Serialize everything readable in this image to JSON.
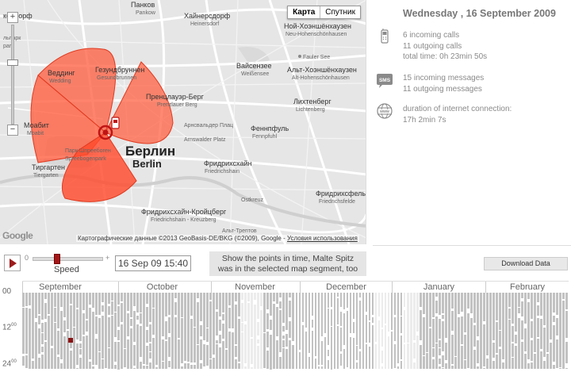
{
  "map": {
    "type_buttons": [
      "Карта",
      "Спутник"
    ],
    "zoom_in": "+",
    "zoom_out": "−",
    "attribution": "Картографические данные ©2013 GeoBasis-DE/BKG (©2009), Google - ",
    "terms": "Условия использования",
    "google": "Google",
    "labels": {
      "pankow": "Панков",
      "pankow_de": "Pankow",
      "heinersdorf": "Хайнерсдорф",
      "heinersdorf_de": "Heinersdorf",
      "neu_hohen": "Ной-Хоэншёнхаузен",
      "neu_hohen_de": "Neu-Hohenschönhausen",
      "kendorf": "кендорф",
      "reinickendorf_park": "льпарк",
      "reinickendorf_park_de": "park",
      "wedding": "Веддинг",
      "wedding_de": "Wedding",
      "gesundbrunnen": "Гезундбруннен",
      "gesundbrunnen_de": "Gesundbrunnen",
      "weissensee": "Вайсензее",
      "weissensee_de": "Weißensee",
      "alt_hohen": "Альт-Хоэншёнхаузен",
      "alt_hohen_de": "Alt-Hohenschönhausen",
      "prenzlauer": "Пренцлауэр-Берг",
      "prenzlauer_de": "Prenzlauer Berg",
      "lichtenberg": "Лихтенберг",
      "lichtenberg_de": "Lichtenberg",
      "moabit": "Моабит",
      "moabit_de": "Moabit",
      "arnswalder": "Арнсвальдер Плац",
      "arnswalder_de": "Arnswalder Platz",
      "fennpfuhl": "Феннпфуль",
      "fennpfuhl_de": "Fennpfuhl",
      "berlin": "Берлин",
      "berlin_de": "Berlin",
      "park": "Парк Шпреебоген",
      "park_de": "Spreebogenpark",
      "tiergarten": "Тиргартен",
      "tiergarten_de": "Tiergarten",
      "friedrichshain": "Фридрихсхайн",
      "friedrichshain_de": "Friedrichshain",
      "ostkreuz": "Ostkreuz",
      "friedrichsfelde": "Фридрихсфельде",
      "friedrichsfelde_de": "Friedrichsfelde",
      "kreuzberg": "Фридрихсхайн-Кройцберг",
      "kreuzberg_de": "Friedrichshain - Kreuzberg",
      "alt_treptow": "Альт-Трептов",
      "fauler": "Fauler See"
    }
  },
  "info": {
    "date": "Wednesday , 16 September 2009",
    "calls": [
      "6 incoming calls",
      "11 outgoing calls",
      "total time: 0h 23min 50s"
    ],
    "messages": [
      "15 incoming messages",
      "11 outgoing messages"
    ],
    "internet": [
      "duration of internet connection:",
      "17h 2min 7s"
    ],
    "sms_icon_text": "SMS",
    "www_icon_text": "www"
  },
  "controls": {
    "speed_min": "0",
    "speed_max": "+",
    "speed_label": "Speed",
    "speed_value": 0.35,
    "current_time": "16 Sep 09 15:40",
    "hint_line1": "Show the points in time, Malte Spitz",
    "hint_line2": "was in the selected map segment, too",
    "download": "Download Data"
  },
  "timeline": {
    "months": [
      "September",
      "October",
      "November",
      "December",
      "January",
      "February"
    ],
    "y_labels": [
      "00",
      "12",
      "24"
    ],
    "y_sup": "00"
  },
  "colors": {
    "sector_fill": "#ff5b3c",
    "sector_stroke": "#e03a20",
    "accent": "#9b1c1c"
  }
}
